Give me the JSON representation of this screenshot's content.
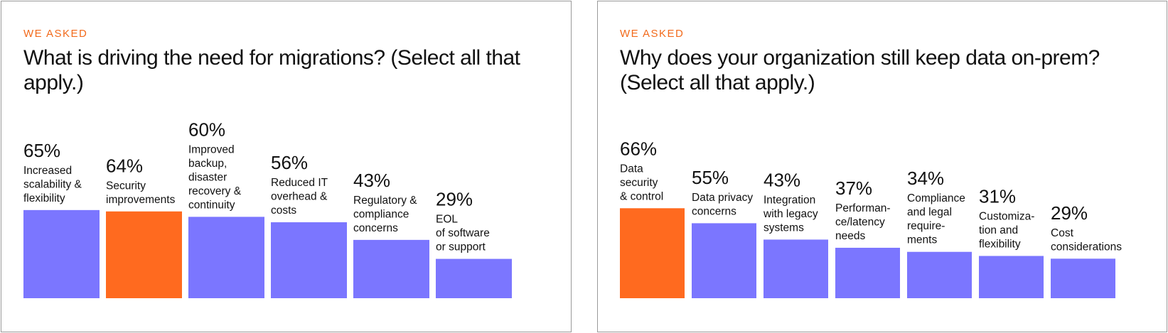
{
  "panels": [
    {
      "eyebrow": "WE ASKED",
      "question": "What is driving the need for migrations? (Select all that apply.)",
      "chart_data": {
        "type": "bar",
        "unit": "%",
        "categories": [
          "Increased scalability & flexibility",
          "Security improvements",
          "Improved backup, disaster recovery & continuity",
          "Reduced IT overhead & costs",
          "Regulatory & compliance concerns",
          "EOL of software or support"
        ],
        "label_lines": [
          [
            "Increased",
            "scalability &",
            "flexibility"
          ],
          [
            "Security",
            "improvements"
          ],
          [
            "Improved",
            "backup,",
            "disaster",
            "recovery &",
            "continuity"
          ],
          [
            "Reduced IT",
            "overhead &",
            "costs"
          ],
          [
            "Regulatory &",
            "compliance",
            "concerns"
          ],
          [
            "EOL",
            "of software",
            "or support"
          ]
        ],
        "values": [
          65,
          64,
          60,
          56,
          43,
          29
        ],
        "value_labels": [
          "65%",
          "64%",
          "60%",
          "56%",
          "43%",
          "29%"
        ],
        "highlight_index": 1
      }
    },
    {
      "eyebrow": "WE ASKED",
      "question": "Why does your organization still keep data on-prem? (Select all that apply.)",
      "chart_data": {
        "type": "bar",
        "unit": "%",
        "categories": [
          "Data security & control",
          "Data privacy concerns",
          "Integration with legacy systems",
          "Performance/latency needs",
          "Compliance and legal requirements",
          "Customization and flexibility",
          "Cost considerations"
        ],
        "label_lines": [
          [
            "Data",
            "security",
            "& control"
          ],
          [
            "Data privacy",
            "concerns"
          ],
          [
            "Integration",
            "with legacy",
            "systems"
          ],
          [
            "Performan-",
            "ce/latency",
            "needs"
          ],
          [
            "Compliance",
            "and legal",
            "require-",
            "ments"
          ],
          [
            "Customiza-",
            "tion and",
            "flexibility"
          ],
          [
            "Cost",
            "considerations"
          ]
        ],
        "values": [
          66,
          55,
          43,
          37,
          34,
          31,
          29
        ],
        "value_labels": [
          "66%",
          "55%",
          "43%",
          "37%",
          "34%",
          "31%",
          "29%"
        ],
        "highlight_index": 0
      }
    }
  ],
  "colors": {
    "bar": "#7b76ff",
    "highlight": "#ff6a1f",
    "eyebrow": "#f26a1b",
    "text": "#111111"
  }
}
